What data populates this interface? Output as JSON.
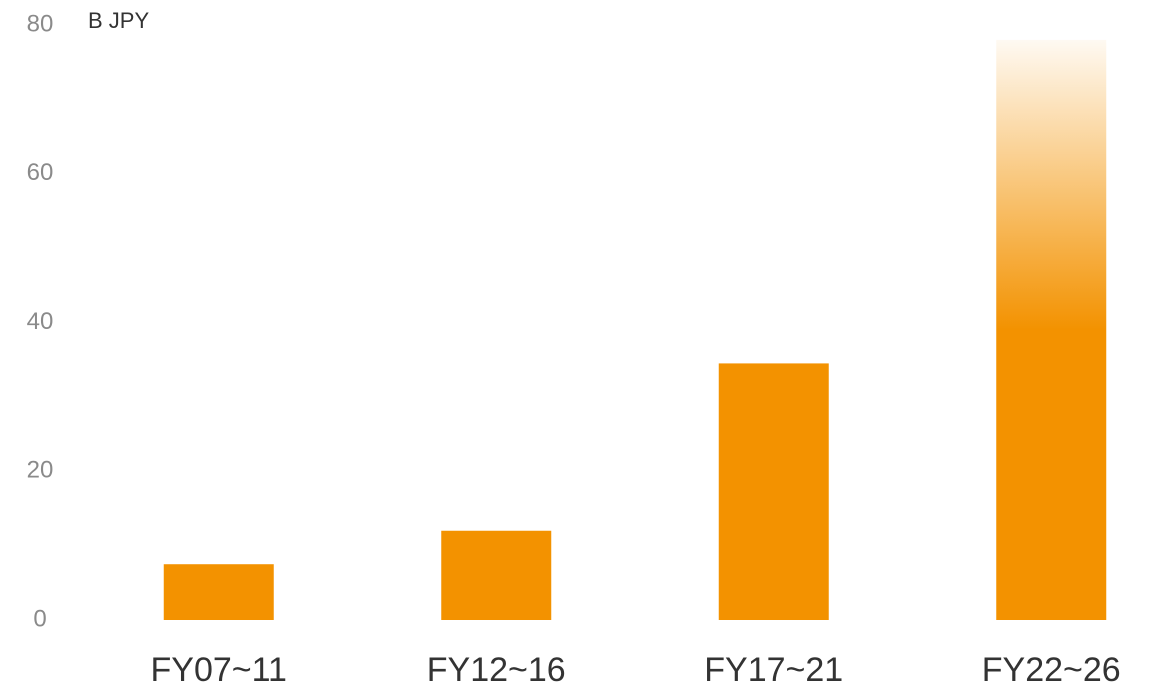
{
  "chart_data": {
    "type": "bar",
    "y_unit": "B JPY",
    "categories": [
      "FY07~11",
      "FY12~16",
      "FY17~21",
      "FY22~26"
    ],
    "values": [
      7.5,
      12,
      34.5,
      78
    ],
    "color": "#f39200",
    "faded": [
      false,
      false,
      false,
      true
    ],
    "ylim": [
      0,
      80
    ],
    "yticks": [
      0,
      20,
      40,
      60,
      80
    ],
    "grid": false
  }
}
